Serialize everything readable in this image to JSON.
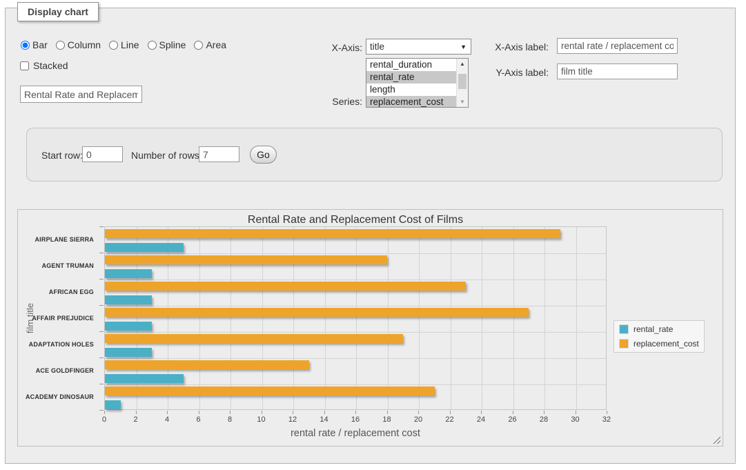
{
  "panel": {
    "legend": "Display chart"
  },
  "controls": {
    "chart_types": [
      {
        "label": "Bar",
        "selected": true
      },
      {
        "label": "Column",
        "selected": false
      },
      {
        "label": "Line",
        "selected": false
      },
      {
        "label": "Spline",
        "selected": false
      },
      {
        "label": "Area",
        "selected": false
      }
    ],
    "stacked": {
      "label": "Stacked",
      "checked": false
    },
    "title_input": {
      "value": "Rental Rate and Replacement Cost of Films"
    },
    "x_axis": {
      "label": "X-Axis:",
      "value": "title"
    },
    "series_select": {
      "label": "Series:",
      "options": [
        {
          "label": "rental_duration",
          "selected": false
        },
        {
          "label": "rental_rate",
          "selected": true
        },
        {
          "label": "length",
          "selected": false
        },
        {
          "label": "replacement_cost",
          "selected": true
        }
      ]
    },
    "x_axis_label": {
      "label": "X-Axis label:",
      "value": "rental rate / replacement cost"
    },
    "y_axis_label": {
      "label": "Y-Axis label:",
      "value": "film title"
    }
  },
  "row_controls": {
    "start_row_label": "Start row:",
    "start_row_value": "0",
    "num_rows_label": "Number of rows:",
    "num_rows_value": "7",
    "go_label": "Go"
  },
  "chart_data": {
    "type": "bar",
    "orientation": "horizontal",
    "title": "Rental Rate and Replacement Cost of Films",
    "xlabel": "rental rate / replacement cost",
    "ylabel": "film title",
    "categories": [
      "AIRPLANE SIERRA",
      "AGENT TRUMAN",
      "AFRICAN EGG",
      "AFFAIR PREJUDICE",
      "ADAPTATION HOLES",
      "ACE GOLDFINGER",
      "ACADEMY DINOSAUR"
    ],
    "series": [
      {
        "name": "rental_rate",
        "color": "#4BB0C5",
        "values": [
          4.99,
          2.99,
          2.99,
          2.99,
          2.99,
          4.99,
          0.99
        ]
      },
      {
        "name": "replacement_cost",
        "color": "#EEA42B",
        "values": [
          28.99,
          17.99,
          22.99,
          26.99,
          18.99,
          12.99,
          20.99
        ]
      }
    ],
    "xlim": [
      0,
      32
    ],
    "xticks": [
      0,
      2,
      4,
      6,
      8,
      10,
      12,
      14,
      16,
      18,
      20,
      22,
      24,
      26,
      28,
      30,
      32
    ],
    "grid": true,
    "legend_position": "right",
    "plot_bg": "#ededed",
    "grid_color": "#d3d3d3"
  }
}
